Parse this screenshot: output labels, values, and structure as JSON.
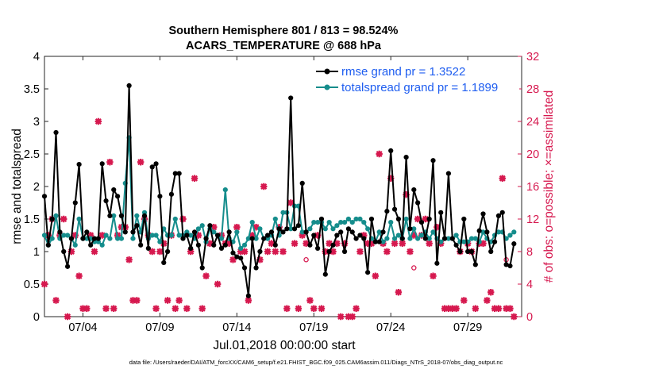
{
  "chart_data": {
    "type": "line",
    "title": "Southern Hemisphere 801 / 813 = 98.524%",
    "subtitle": "ACARS_TEMPERATURE @ 688 hPa",
    "xlabel": "Jul.01,2018 00:00:00 start",
    "ylabel": "rmse and totalspread",
    "ylabel_right": "# of obs: o=possible; ×=assimilated",
    "x_ticks": [
      "07/04",
      "07/09",
      "07/14",
      "07/19",
      "07/24",
      "07/29"
    ],
    "x_tick_days": [
      3,
      8,
      13,
      18,
      23,
      28
    ],
    "xlim": [
      0.5,
      31.5
    ],
    "ylim": [
      0,
      4
    ],
    "y_ticks": [
      "0",
      "0.5",
      "1",
      "1.5",
      "2",
      "2.5",
      "3",
      "3.5",
      "4"
    ],
    "ylim_right": [
      0,
      32
    ],
    "y_ticks_right": [
      "0",
      "4",
      "8",
      "12",
      "16",
      "20",
      "24",
      "28",
      "32"
    ],
    "footnote": "data file: /Users/raeder/DAI/ATM_forcXX/CAM6_setup/f.e21.FHIST_BGC.f09_025.CAM6assim.011/Diags_NTrS_2018-07/obs_diag_output.nc",
    "legend_position": "top-right",
    "series": [
      {
        "name": "rmse grand pr = 1.3522",
        "color": "#000000",
        "x": [
          0.5,
          0.75,
          1.0,
          1.25,
          1.5,
          1.75,
          2.0,
          2.25,
          2.5,
          2.75,
          3.0,
          3.25,
          3.5,
          3.75,
          4.0,
          4.25,
          4.5,
          4.75,
          5.0,
          5.25,
          5.5,
          5.75,
          6.0,
          6.25,
          6.5,
          6.75,
          7.0,
          7.25,
          7.5,
          7.75,
          8.0,
          8.25,
          8.5,
          8.75,
          9.0,
          9.25,
          9.5,
          9.75,
          10.0,
          10.25,
          10.5,
          10.75,
          11.0,
          11.25,
          11.5,
          11.75,
          12.0,
          12.25,
          12.5,
          12.75,
          13.0,
          13.25,
          13.5,
          13.75,
          14.0,
          14.25,
          14.5,
          14.75,
          15.0,
          15.25,
          15.5,
          15.75,
          16.0,
          16.25,
          16.5,
          16.75,
          17.0,
          17.25,
          17.5,
          17.75,
          18.0,
          18.25,
          18.5,
          18.75,
          19.0,
          19.25,
          19.5,
          19.75,
          20.0,
          20.25,
          20.5,
          20.75,
          21.0,
          21.25,
          21.5,
          21.75,
          22.0,
          22.25,
          22.5,
          22.75,
          23.0,
          23.25,
          23.5,
          23.75,
          24.0,
          24.25,
          24.5,
          24.75,
          25.0,
          25.25,
          25.5,
          25.75,
          26.0,
          26.25,
          26.5,
          26.75,
          27.0,
          27.25,
          27.5,
          27.75,
          28.0,
          28.25,
          28.5,
          28.75,
          29.0,
          29.25,
          29.5,
          29.75,
          30.0,
          30.25,
          30.5,
          30.75,
          31.0
        ],
        "values": [
          1.85,
          1.1,
          1.5,
          2.83,
          1.3,
          1.0,
          0.77,
          1.2,
          1.75,
          2.34,
          1.2,
          1.3,
          1.1,
          1.2,
          1.2,
          2.35,
          1.78,
          1.55,
          1.95,
          1.85,
          1.55,
          1.3,
          3.55,
          1.3,
          1.4,
          1.1,
          1.55,
          1.05,
          2.3,
          2.35,
          1.85,
          0.83,
          1.0,
          1.88,
          2.2,
          2.2,
          1.2,
          1.25,
          1.05,
          1.3,
          1.1,
          0.75,
          1.2,
          1.4,
          1.1,
          1.25,
          1.05,
          1.1,
          1.3,
          0.98,
          0.92,
          0.9,
          0.75,
          0.32,
          1.2,
          0.75,
          1.0,
          1.2,
          1.25,
          1.3,
          1.1,
          1.35,
          1.3,
          1.35,
          3.36,
          1.35,
          1.4,
          2.05,
          1.3,
          1.1,
          1.25,
          1.05,
          1.5,
          0.65,
          1.0,
          1.1,
          1.25,
          1.3,
          1.0,
          1.35,
          1.3,
          1.2,
          1.25,
          1.2,
          0.68,
          1.5,
          1.15,
          1.15,
          1.3,
          1.62,
          2.55,
          1.65,
          1.5,
          1.2,
          2.45,
          1.35,
          1.95,
          1.75,
          1.45,
          1.2,
          1.5,
          2.4,
          0.82,
          1.6,
          1.2,
          2.2,
          1.2,
          1.1,
          1.0,
          1.5,
          1.0,
          1.0,
          0.8,
          1.32,
          1.58,
          1.3,
          1.0,
          1.15,
          1.55,
          1.6,
          0.8,
          0.78,
          1.12
        ]
      },
      {
        "name": "totalspread grand pr = 1.1899",
        "color": "#158d8c",
        "x": [
          0.5,
          0.75,
          1.0,
          1.25,
          1.5,
          1.75,
          2.0,
          2.25,
          2.5,
          2.75,
          3.0,
          3.25,
          3.5,
          3.75,
          4.0,
          4.25,
          4.5,
          4.75,
          5.0,
          5.25,
          5.5,
          5.75,
          6.0,
          6.25,
          6.5,
          6.75,
          7.0,
          7.25,
          7.5,
          7.75,
          8.0,
          8.25,
          8.5,
          8.75,
          9.0,
          9.25,
          9.5,
          9.75,
          10.0,
          10.25,
          10.5,
          10.75,
          11.0,
          11.25,
          11.5,
          11.75,
          12.0,
          12.25,
          12.5,
          12.75,
          13.0,
          13.25,
          13.5,
          13.75,
          14.0,
          14.25,
          14.5,
          14.75,
          15.0,
          15.25,
          15.5,
          15.75,
          16.0,
          16.25,
          16.5,
          16.75,
          17.0,
          17.25,
          17.5,
          17.75,
          18.0,
          18.25,
          18.5,
          18.75,
          19.0,
          19.25,
          19.5,
          19.75,
          20.0,
          20.25,
          20.5,
          20.75,
          21.0,
          21.25,
          21.5,
          21.75,
          22.0,
          22.25,
          22.5,
          22.75,
          23.0,
          23.25,
          23.5,
          23.75,
          24.0,
          24.25,
          24.5,
          24.75,
          25.0,
          25.25,
          25.5,
          25.75,
          26.0,
          26.25,
          26.5,
          26.75,
          27.0,
          27.25,
          27.5,
          27.75,
          28.0,
          28.25,
          28.5,
          28.75,
          29.0,
          29.25,
          29.5,
          29.75,
          30.0,
          30.25,
          30.5,
          30.75,
          31.0
        ],
        "values": [
          1.25,
          1.1,
          1.2,
          1.55,
          1.2,
          1.25,
          1.25,
          1.2,
          1.1,
          1.5,
          1.2,
          1.2,
          1.2,
          1.15,
          1.15,
          1.1,
          1.25,
          1.2,
          1.55,
          1.2,
          1.2,
          2.05,
          2.75,
          1.2,
          1.55,
          1.3,
          1.6,
          1.2,
          1.25,
          1.25,
          1.15,
          1.35,
          1.25,
          1.25,
          1.5,
          1.25,
          1.25,
          1.3,
          1.25,
          1.2,
          1.35,
          1.4,
          1.15,
          1.35,
          1.3,
          1.25,
          1.2,
          1.95,
          1.2,
          1.15,
          1.3,
          1.05,
          1.1,
          1.2,
          1.45,
          1.2,
          1.35,
          1.2,
          1.2,
          1.25,
          1.5,
          1.25,
          1.6,
          1.6,
          1.35,
          1.7,
          1.7,
          1.3,
          1.3,
          1.35,
          1.45,
          1.45,
          1.45,
          1.35,
          1.45,
          1.35,
          1.4,
          1.45,
          1.45,
          1.5,
          1.45,
          1.5,
          1.5,
          1.45,
          1.35,
          1.2,
          1.15,
          1.3,
          1.15,
          1.2,
          1.45,
          1.2,
          1.25,
          1.2,
          1.5,
          1.2,
          1.35,
          1.2,
          1.25,
          1.3,
          1.2,
          1.3,
          1.2,
          1.15,
          1.2,
          1.2,
          1.2,
          1.25,
          1.15,
          1.15,
          1.15,
          1.2,
          1.2,
          1.15,
          1.3,
          1.2,
          1.15,
          1.25,
          1.3,
          1.3,
          1.2,
          1.25,
          1.3
        ]
      },
      {
        "name": "assimilated",
        "color": "#d6194f",
        "x": [
          0.5,
          0.75,
          1.0,
          1.25,
          1.5,
          1.75,
          2.0,
          2.25,
          2.5,
          2.75,
          3.0,
          3.25,
          3.5,
          3.75,
          4.0,
          4.25,
          4.5,
          4.75,
          5.0,
          5.25,
          5.5,
          5.75,
          6.0,
          6.25,
          6.5,
          6.75,
          7.0,
          7.25,
          7.5,
          7.75,
          8.0,
          8.25,
          8.5,
          8.75,
          9.0,
          9.25,
          9.5,
          9.75,
          10.0,
          10.25,
          10.5,
          10.75,
          11.0,
          11.25,
          11.5,
          11.75,
          12.0,
          12.25,
          12.5,
          12.75,
          13.0,
          13.25,
          13.5,
          13.75,
          14.0,
          14.25,
          14.5,
          14.75,
          15.0,
          15.25,
          15.5,
          15.75,
          16.0,
          16.25,
          16.5,
          16.75,
          17.0,
          17.25,
          17.5,
          17.75,
          18.0,
          18.25,
          18.5,
          18.75,
          19.0,
          19.25,
          19.5,
          19.75,
          20.0,
          20.25,
          20.5,
          20.75,
          21.0,
          21.25,
          21.5,
          21.75,
          22.0,
          22.25,
          22.5,
          22.75,
          23.0,
          23.25,
          23.5,
          23.75,
          24.0,
          24.25,
          24.5,
          24.75,
          25.0,
          25.25,
          25.5,
          25.75,
          26.0,
          26.25,
          26.5,
          26.75,
          27.0,
          27.25,
          27.5,
          27.75,
          28.0,
          28.25,
          28.5,
          28.75,
          29.0,
          29.25,
          29.5,
          29.75,
          30.0,
          30.25,
          30.5,
          30.75,
          31.0
        ],
        "values": [
          4,
          10,
          12,
          2,
          10,
          12,
          0,
          8,
          10,
          5,
          1,
          1,
          10,
          8,
          24,
          10,
          1,
          19,
          1,
          10,
          11,
          11,
          7,
          2,
          2,
          19,
          12,
          10,
          8,
          1,
          8,
          9,
          2,
          10,
          1,
          2,
          12,
          1,
          8,
          17,
          10,
          1,
          5,
          9,
          11,
          4,
          10,
          9,
          9,
          7,
          11,
          8,
          8,
          2,
          10,
          11,
          7,
          16,
          8,
          9,
          8,
          11,
          8,
          1,
          14,
          9,
          1,
          10,
          9,
          2,
          1,
          10,
          1,
          8,
          9,
          8,
          9,
          0,
          9,
          0,
          0,
          1,
          8,
          10,
          9,
          9,
          5,
          20,
          9,
          8,
          17,
          9,
          3,
          9,
          15,
          8,
          10,
          12,
          10,
          12,
          9,
          5,
          11,
          9,
          1,
          1,
          1,
          1,
          8,
          2,
          9,
          8,
          1,
          9,
          9,
          2,
          3,
          1,
          1,
          17,
          1,
          1,
          0
        ]
      },
      {
        "name": "possible",
        "color": "#d6194f",
        "x": [
          17.5,
          24.5,
          30.25,
          30.5
        ],
        "values": [
          7,
          6,
          17,
          7
        ]
      }
    ]
  }
}
